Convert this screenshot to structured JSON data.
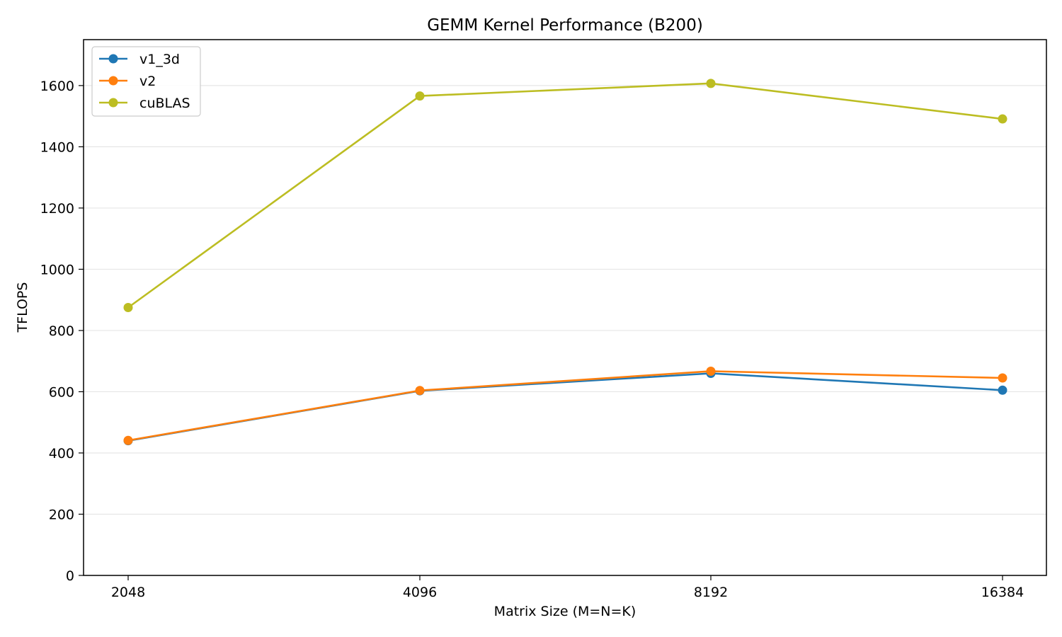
{
  "chart_data": {
    "type": "line",
    "title": "GEMM Kernel Performance (B200)",
    "xlabel": "Matrix Size (M=N=K)",
    "ylabel": "TFLOPS",
    "categories": [
      "2048",
      "4096",
      "8192",
      "16384"
    ],
    "ylim": [
      0,
      1750
    ],
    "yticks": [
      0,
      200,
      400,
      600,
      800,
      1000,
      1200,
      1400,
      1600
    ],
    "grid": "horizontal",
    "legend_position": "top-left",
    "series": [
      {
        "name": "v1_3d",
        "color": "#1f77b4",
        "values": [
          440,
          603,
          660,
          605
        ]
      },
      {
        "name": "v2",
        "color": "#ff7f0e",
        "values": [
          441,
          604,
          667,
          645
        ]
      },
      {
        "name": "cuBLAS",
        "color": "#bcbd22",
        "values": [
          875,
          1566,
          1607,
          1491
        ]
      }
    ]
  }
}
